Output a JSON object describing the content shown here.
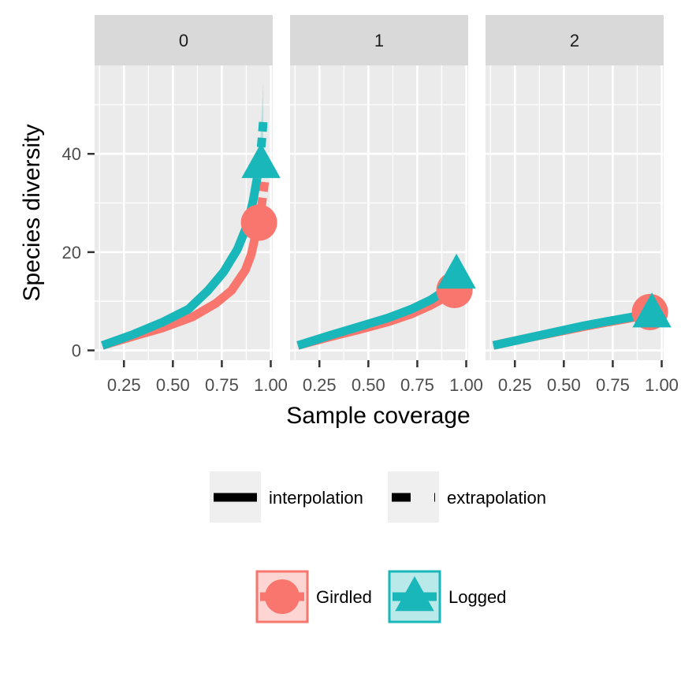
{
  "chart_data": {
    "type": "line",
    "title": "",
    "xlabel": "Sample coverage",
    "ylabel": "Species diversity",
    "xlim": [
      0.1,
      1.01
    ],
    "ylim": [
      -2,
      58
    ],
    "x_ticks": [
      0.25,
      0.5,
      0.75,
      1.0
    ],
    "x_tick_labels": [
      "0.25",
      "0.50",
      "0.75",
      "1.00"
    ],
    "y_ticks": [
      0,
      20,
      40
    ],
    "y_tick_labels": [
      "0",
      "20",
      "40"
    ],
    "grid": true,
    "legend_position": "bottom",
    "colors": {
      "Girdled": "#F8766D",
      "Logged": "#19B7BA"
    },
    "panels": [
      {
        "order": "0",
        "series": [
          {
            "name": "Girdled",
            "interpolation": {
              "x": [
                0.14,
                0.3,
                0.45,
                0.6,
                0.72,
                0.8,
                0.87,
                0.9,
                0.92,
                0.94
              ],
              "y": [
                1,
                2.9,
                4.6,
                6.8,
                9.6,
                12.2,
                16.3,
                19.5,
                23.0,
                26.0
              ]
            },
            "extrapolation": {
              "x": [
                0.94,
                0.955,
                0.965,
                0.975
              ],
              "y": [
                26.0,
                30.0,
                33.0,
                36.5
              ]
            },
            "observed": {
              "x": 0.94,
              "y": 26.0
            }
          },
          {
            "name": "Logged",
            "interpolation": {
              "x": [
                0.14,
                0.3,
                0.45,
                0.58,
                0.68,
                0.76,
                0.83,
                0.88,
                0.91,
                0.93
              ],
              "y": [
                1,
                3.3,
                5.8,
                8.4,
                12.2,
                16.0,
                20.6,
                25.5,
                30.5,
                35.0
              ]
            },
            "extrapolation": {
              "x": [
                0.93,
                0.945,
                0.955,
                0.962
              ],
              "y": [
                35.0,
                39.0,
                43.0,
                46.8
              ]
            },
            "observed": {
              "x": 0.95,
              "y": 38.0
            },
            "ci_upper": {
              "x": [
                0.93,
                0.945,
                0.955,
                0.962
              ],
              "y": [
                36,
                42,
                49,
                55
              ]
            },
            "ci_lower": {
              "x": [
                0.93,
                0.945,
                0.955,
                0.962
              ],
              "y": [
                34,
                36,
                38,
                40
              ]
            }
          }
        ]
      },
      {
        "order": "1",
        "series": [
          {
            "name": "Girdled",
            "interpolation": {
              "x": [
                0.14,
                0.3,
                0.45,
                0.6,
                0.72,
                0.82,
                0.88,
                0.92,
                0.94
              ],
              "y": [
                1,
                2.7,
                4.2,
                5.8,
                7.4,
                9.2,
                10.5,
                11.6,
                12.3
              ]
            },
            "extrapolation": {
              "x": [
                0.94,
                0.96,
                0.975,
                0.99
              ],
              "y": [
                12.3,
                13.0,
                13.5,
                14.0
              ]
            },
            "observed": {
              "x": 0.94,
              "y": 12.3
            }
          },
          {
            "name": "Logged",
            "interpolation": {
              "x": [
                0.14,
                0.3,
                0.45,
                0.6,
                0.72,
                0.82,
                0.88,
                0.92,
                0.95
              ],
              "y": [
                1,
                3.0,
                4.8,
                6.6,
                8.4,
                10.3,
                11.9,
                13.0,
                14.0
              ]
            },
            "extrapolation": {
              "x": [
                0.95,
                0.965,
                0.98,
                0.99
              ],
              "y": [
                14.0,
                14.8,
                15.3,
                15.7
              ]
            },
            "observed": {
              "x": 0.95,
              "y": 15.5
            }
          }
        ]
      },
      {
        "order": "2",
        "series": [
          {
            "name": "Girdled",
            "interpolation": {
              "x": [
                0.14,
                0.3,
                0.45,
                0.6,
                0.72,
                0.82,
                0.88,
                0.92,
                0.94
              ],
              "y": [
                1,
                2.4,
                3.6,
                4.8,
                5.7,
                6.4,
                6.9,
                7.2,
                7.5
              ]
            },
            "extrapolation": {
              "x": [
                0.94,
                0.96,
                0.975,
                0.99
              ],
              "y": [
                7.5,
                7.7,
                7.8,
                7.9
              ]
            },
            "observed": {
              "x": 0.94,
              "y": 7.8
            }
          },
          {
            "name": "Logged",
            "interpolation": {
              "x": [
                0.14,
                0.3,
                0.45,
                0.6,
                0.72,
                0.82,
                0.88,
                0.92,
                0.94
              ],
              "y": [
                1,
                2.4,
                3.7,
                5.0,
                5.9,
                6.6,
                7.0,
                7.3,
                7.6
              ]
            },
            "extrapolation": {
              "x": [
                0.94,
                0.96,
                0.975,
                0.99
              ],
              "y": [
                7.6,
                7.8,
                7.9,
                8.0
              ]
            },
            "observed": {
              "x": 0.95,
              "y": 7.6
            }
          }
        ]
      }
    ],
    "legend": {
      "linetype": [
        {
          "key": "interpolation",
          "label": "interpolation"
        },
        {
          "key": "extrapolation",
          "label": "extrapolation"
        }
      ],
      "groups": [
        {
          "key": "Girdled",
          "label": "Girdled",
          "shape": "circle"
        },
        {
          "key": "Logged",
          "label": "Logged",
          "shape": "triangle"
        }
      ]
    }
  }
}
